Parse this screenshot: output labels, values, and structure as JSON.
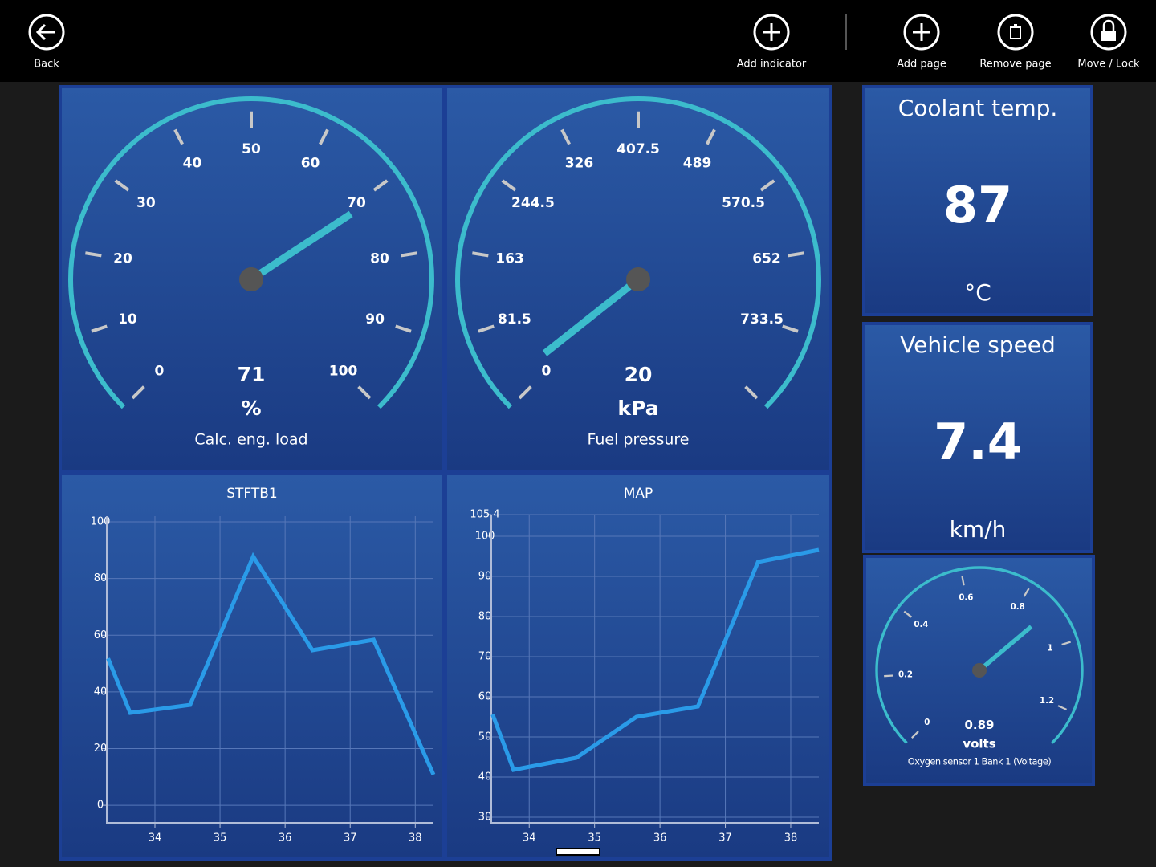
{
  "toolbar": {
    "buttons": [
      {
        "label": "Back"
      },
      {
        "label": "Add indicator"
      },
      {
        "label": "Add page"
      },
      {
        "label": "Remove page"
      },
      {
        "label": "Move / Lock"
      }
    ]
  },
  "gauges": [
    {
      "type": "gauge",
      "name": "Calc. eng. load",
      "value": 71,
      "unit": "%",
      "range": [
        0,
        100
      ],
      "ticks": [
        0,
        10,
        20,
        30,
        40,
        50,
        60,
        70,
        80,
        90,
        100
      ]
    },
    {
      "type": "gauge",
      "name": "Fuel pressure",
      "value": 20,
      "unit": "kPa",
      "range": [
        0,
        815
      ],
      "ticks": [
        0,
        81.5,
        163,
        244.5,
        326,
        407.5,
        489,
        570.5,
        652,
        733.5,
        {
          "value": 815,
          "label": null
        }
      ]
    },
    {
      "type": "gauge",
      "name": "Oxygen sensor 1 Bank 1 (Voltage)",
      "value": 0.89,
      "unit": "volts",
      "range": [
        0,
        1.3
      ],
      "ticks": [
        0,
        0.2,
        0.4,
        0.6,
        0.8,
        1,
        1.2
      ]
    }
  ],
  "tiles": [
    {
      "title": "Coolant temp.",
      "value": 87,
      "unit": "°C"
    },
    {
      "title": "Vehicle speed",
      "value": 7.4,
      "unit": "km/h"
    }
  ],
  "line_charts": [
    {
      "type": "line",
      "title": "STFTB1",
      "color": "#2a9be8",
      "grid": true,
      "x": [
        33.28,
        33.62,
        34.54,
        35.51,
        36.42,
        37.36,
        38.28
      ],
      "values": [
        51.8,
        32.6,
        35.4,
        87.8,
        54.7,
        58.4,
        10.8
      ],
      "xlim": [
        33.26,
        38.28
      ],
      "ylim": [
        -6.2,
        102
      ],
      "xticks": [
        34,
        35,
        36,
        37,
        38
      ],
      "yticks": [
        0,
        20,
        40,
        60,
        80,
        100
      ]
    },
    {
      "type": "line",
      "title": "MAP",
      "color": "#2a9be8",
      "grid": true,
      "x": [
        33.44,
        33.76,
        34.72,
        35.64,
        36.58,
        37.5,
        38.43
      ],
      "values": [
        55.6,
        41.8,
        44.8,
        55,
        57.6,
        93.6,
        96.6
      ],
      "xlim": [
        33.42,
        38.43
      ],
      "ylim": [
        28.6,
        105.4
      ],
      "xticks": [
        34,
        35,
        36,
        37,
        38
      ],
      "yticks": [
        30,
        40,
        50,
        60,
        70,
        80,
        90,
        100,
        105.4
      ]
    }
  ]
}
